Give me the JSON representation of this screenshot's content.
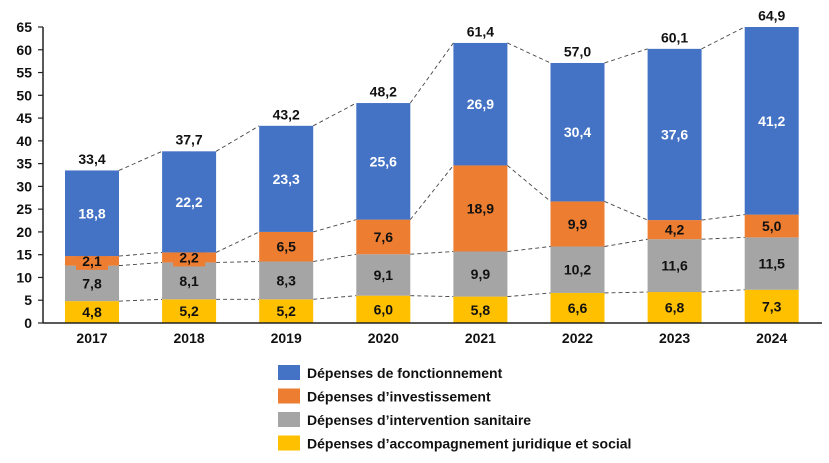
{
  "chart_data": {
    "type": "bar",
    "stacked": true,
    "categories": [
      "2017",
      "2018",
      "2019",
      "2020",
      "2021",
      "2022",
      "2023",
      "2024"
    ],
    "series": [
      {
        "name": "Dépenses d’accompagnement  juridique  et social",
        "color": "#FFC000",
        "values": [
          4.8,
          5.2,
          5.2,
          6.0,
          5.8,
          6.6,
          6.8,
          7.3
        ],
        "label_color": "#111111"
      },
      {
        "name": "Dépenses d’intervention sanitaire",
        "color": "#A5A5A5",
        "values": [
          7.8,
          8.1,
          8.3,
          9.1,
          9.9,
          10.2,
          11.6,
          11.5
        ],
        "label_color": "#111111"
      },
      {
        "name": "Dépenses d’investissement",
        "color": "#ED7D31",
        "values": [
          2.1,
          2.2,
          6.5,
          7.6,
          18.9,
          9.9,
          4.2,
          5.0
        ],
        "label_color": "#111111"
      },
      {
        "name": "Dépenses de fonctionnement",
        "color": "#4472C4",
        "values": [
          18.8,
          22.2,
          23.3,
          25.6,
          26.9,
          30.4,
          37.6,
          41.2
        ],
        "label_color": "#FFFFFF"
      }
    ],
    "totals": [
      33.4,
      37.7,
      43.2,
      48.2,
      61.4,
      57.0,
      60.1,
      64.9
    ],
    "ylim": [
      0,
      65
    ],
    "yticks": [
      0,
      5,
      10,
      15,
      20,
      25,
      30,
      35,
      40,
      45,
      50,
      55,
      60,
      65
    ],
    "grid": false,
    "connector_lines": "dashed",
    "legend_position": "bottom",
    "legend_order": [
      "Dépenses de fonctionnement",
      "Dépenses d’investissement",
      "Dépenses d’intervention sanitaire",
      "Dépenses d’accompagnement  juridique  et social"
    ],
    "decimal_separator": ","
  }
}
